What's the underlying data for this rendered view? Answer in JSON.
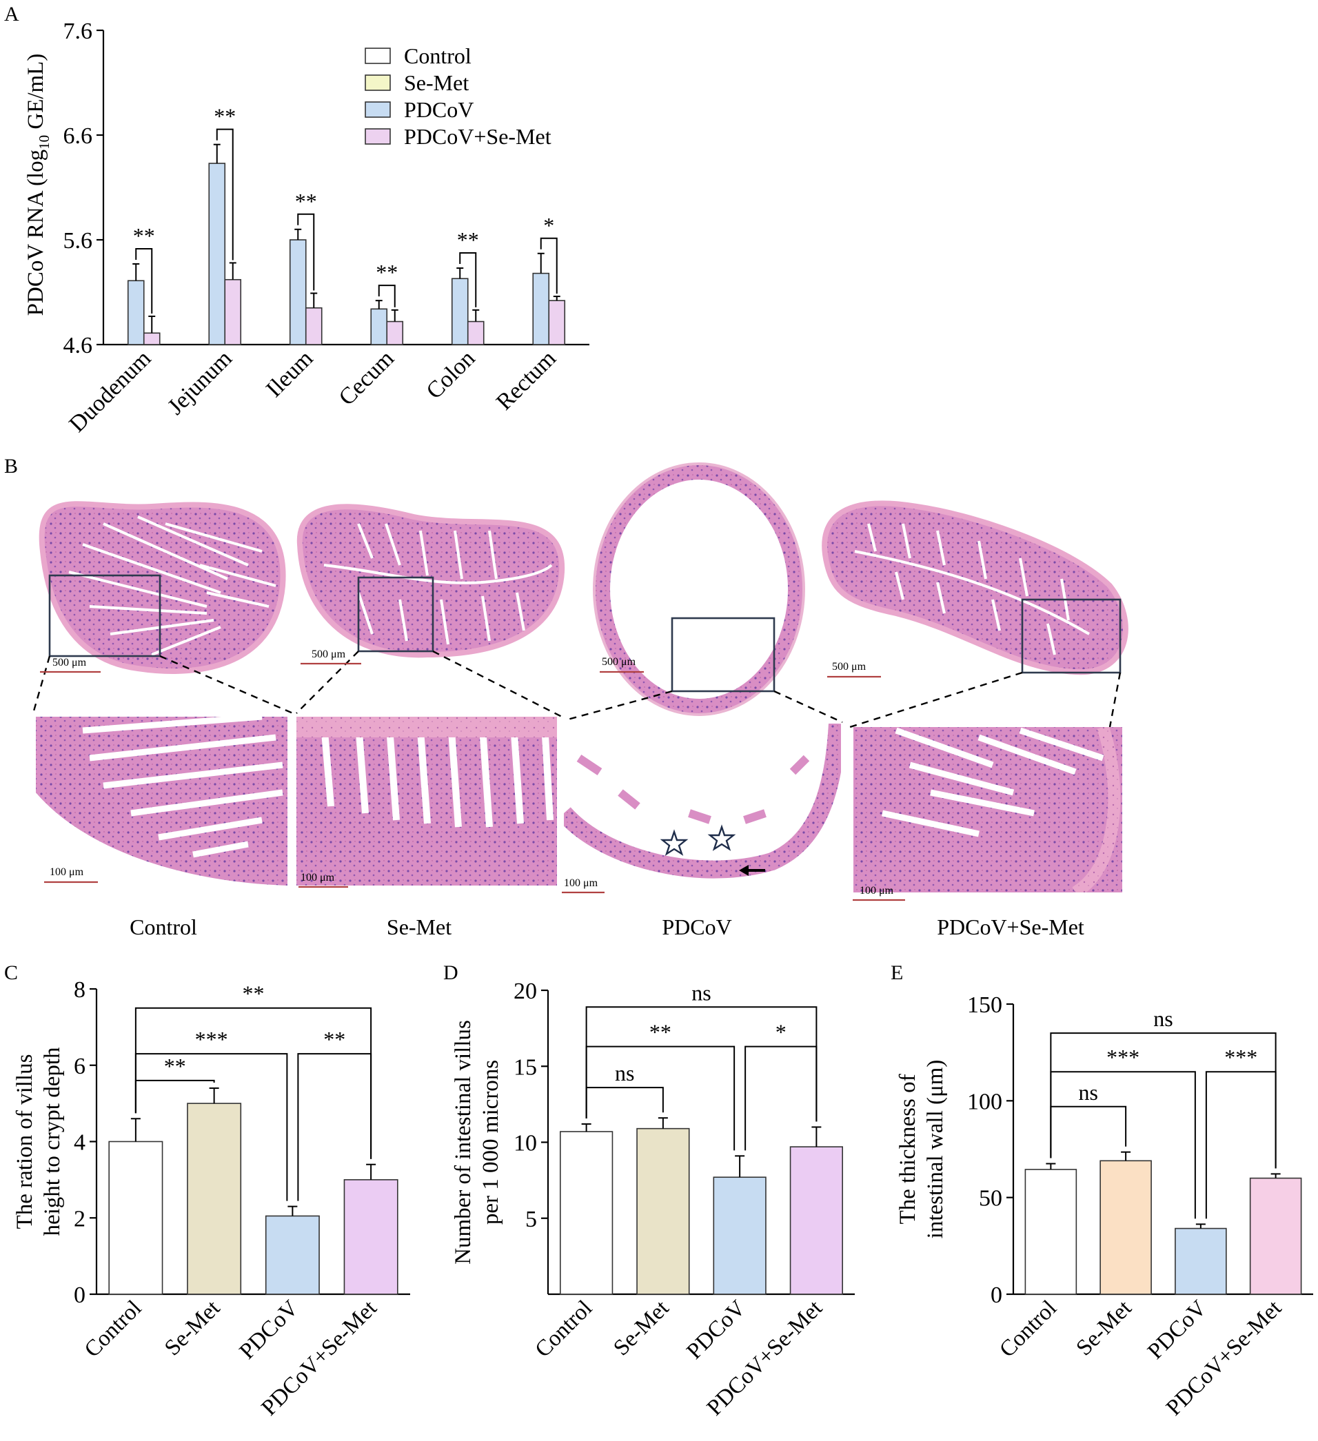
{
  "panel_labels": {
    "a": "A",
    "b": "B",
    "c": "C",
    "d": "D",
    "e": "E"
  },
  "chart_data": [
    {
      "id": "A",
      "type": "bar",
      "ylabel": "PDCoV RNA (log10 GE/mL)",
      "ylabel_main": "PDCoV RNA (log",
      "ylabel_sub": "10",
      "ylabel_end": " GE/mL)",
      "ylim": [
        4.6,
        7.6
      ],
      "yticks": [
        "4.6",
        "5.6",
        "6.6",
        "7.6"
      ],
      "ytick_values": [
        4.6,
        5.6,
        6.6,
        7.6
      ],
      "categories": [
        "Duodenum",
        "Jejunum",
        "Ileum",
        "Cecum",
        "Colon",
        "Rectum"
      ],
      "legend_position": "top-right",
      "legend": [
        "Control",
        "Se-Met",
        "PDCoV",
        "PDCoV+Se-Met"
      ],
      "legend_colors": [
        "#ffffff",
        "#f4f6c8",
        "#c7dcf2",
        "#edd2f0"
      ],
      "series": [
        {
          "name": "PDCoV",
          "color": "#c7dcf2",
          "values": [
            5.21,
            6.33,
            5.6,
            4.94,
            5.23,
            5.28
          ],
          "errors": [
            0.16,
            0.18,
            0.1,
            0.08,
            0.1,
            0.19
          ]
        },
        {
          "name": "PDCoV+Se-Met",
          "color": "#edd2f0",
          "values": [
            4.71,
            5.22,
            4.95,
            4.82,
            4.82,
            5.02
          ],
          "errors": [
            0.16,
            0.16,
            0.14,
            0.11,
            0.11,
            0.04
          ]
        }
      ],
      "significance": [
        "**",
        "**",
        "**",
        "**",
        "**",
        "*"
      ]
    },
    {
      "id": "C",
      "type": "bar",
      "ylabel_line1": "The ration of villus",
      "ylabel_line2": "height to crypt depth",
      "ylim": [
        0,
        8
      ],
      "yticks": [
        "0",
        "2",
        "4",
        "6",
        "8"
      ],
      "ytick_values": [
        0,
        2,
        4,
        6,
        8
      ],
      "categories": [
        "Control",
        "Se-Met",
        "PDCoV",
        "PDCoV+Se-Met"
      ],
      "values": [
        4.0,
        5.0,
        2.05,
        3.0
      ],
      "errors": [
        0.6,
        0.4,
        0.25,
        0.4
      ],
      "colors": [
        "#ffffff",
        "#e9e3c8",
        "#c7dcf2",
        "#ebccf3"
      ],
      "comparisons": [
        {
          "from": 0,
          "to": 1,
          "label": "**",
          "level": 5.6
        },
        {
          "from": 0,
          "to": 2,
          "label": "***",
          "level": 6.3
        },
        {
          "from": 2,
          "to": 3,
          "label": "**",
          "level": 6.3
        },
        {
          "from": 0,
          "to": 3,
          "label": "**",
          "level": 7.5
        }
      ]
    },
    {
      "id": "D",
      "type": "bar",
      "ylabel_line1": "Number of intestinal villus",
      "ylabel_line2": "per 1 000 microns",
      "ylim": [
        0,
        20
      ],
      "yticks": [
        "5",
        "10",
        "15",
        "20"
      ],
      "ytick_values": [
        5,
        10,
        15,
        20
      ],
      "categories": [
        "Control",
        "Se-Met",
        "PDCoV",
        "PDCoV+Se-Met"
      ],
      "values": [
        10.7,
        10.9,
        7.7,
        9.7
      ],
      "errors": [
        0.5,
        0.7,
        1.4,
        1.3
      ],
      "colors": [
        "#ffffff",
        "#e9e3c8",
        "#c7dcf2",
        "#ebccf3"
      ],
      "comparisons": [
        {
          "from": 0,
          "to": 1,
          "label": "ns",
          "level": 13.6
        },
        {
          "from": 0,
          "to": 2,
          "label": "**",
          "level": 16.3
        },
        {
          "from": 2,
          "to": 3,
          "label": "*",
          "level": 16.3
        },
        {
          "from": 0,
          "to": 3,
          "label": "ns",
          "level": 18.9
        }
      ]
    },
    {
      "id": "E",
      "type": "bar",
      "ylabel_line1": "The thickness of",
      "ylabel_line2": "intestinal wall (μm)",
      "ylim": [
        0,
        150
      ],
      "yticks": [
        "0",
        "50",
        "100",
        "150"
      ],
      "ytick_values": [
        0,
        50,
        100,
        150
      ],
      "categories": [
        "Control",
        "Se-Met",
        "PDCoV",
        "PDCoV+Se-Met"
      ],
      "values": [
        64.5,
        69,
        34,
        60
      ],
      "errors": [
        3,
        4.5,
        2.2,
        2.2
      ],
      "colors": [
        "#ffffff",
        "#fbe0c4",
        "#c7dcf2",
        "#f6cfe6"
      ],
      "comparisons": [
        {
          "from": 0,
          "to": 1,
          "label": "ns",
          "level": 97
        },
        {
          "from": 0,
          "to": 2,
          "label": "***",
          "level": 115
        },
        {
          "from": 2,
          "to": 3,
          "label": "***",
          "level": 115
        },
        {
          "from": 0,
          "to": 3,
          "label": "ns",
          "level": 135
        }
      ]
    }
  ],
  "histology": {
    "overview_scale_labels": [
      "500 μm",
      "500 μm",
      "500 μm",
      "500 μm"
    ],
    "detail_scale_labels": [
      "100 μm",
      "100 μm",
      "100 μm",
      "100 μm"
    ],
    "groups": [
      "Control",
      "Se-Met",
      "PDCoV",
      "PDCoV+Se-Met"
    ]
  }
}
